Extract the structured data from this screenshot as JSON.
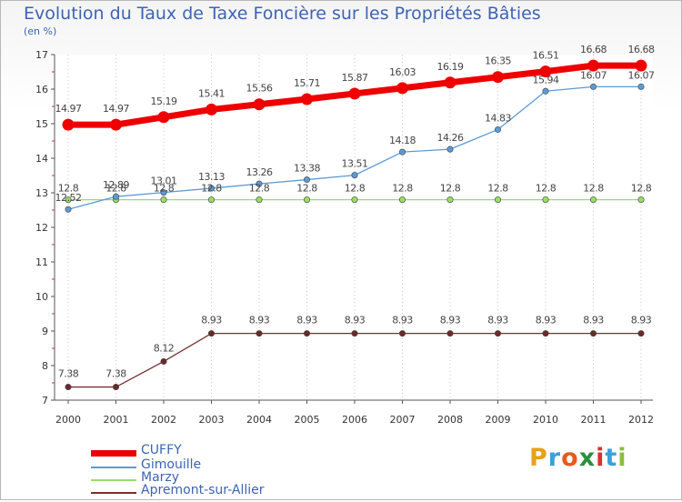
{
  "title": "Evolution du Taux de Taxe Foncière sur les Propriétés Bâties",
  "subtitle": "(en %)",
  "logo_text": "Proxiti",
  "logo_colors": [
    "#e8a11c",
    "#3aa0d8",
    "#e85a1c",
    "#2a8f3e",
    "#d4342c",
    "#3aa0d8",
    "#8bbf3a"
  ],
  "chart_data": {
    "type": "line",
    "title": "Evolution du Taux de Taxe Foncière sur les Propriétés Bâties",
    "ylabel": "(en %)",
    "xlabel": "",
    "x": [
      "2000",
      "2001",
      "2002",
      "2003",
      "2004",
      "2005",
      "2006",
      "2007",
      "2008",
      "2009",
      "2010",
      "2011",
      "2012"
    ],
    "ylim": [
      7,
      17
    ],
    "yticks": [
      "7",
      "8",
      "9",
      "10",
      "11",
      "12",
      "13",
      "14",
      "15",
      "16",
      "17"
    ],
    "grid": "vertical dotted",
    "legend_position": "bottom-left",
    "series": [
      {
        "name": "CUFFY",
        "color": "#ee0000",
        "values": [
          14.97,
          14.97,
          15.19,
          15.41,
          15.56,
          15.71,
          15.87,
          16.03,
          16.19,
          16.35,
          16.51,
          16.68,
          16.68
        ],
        "labels": [
          "14.97",
          "14.97",
          "15.19",
          "15.41",
          "15.56",
          "15.71",
          "15.87",
          "16.03",
          "16.19",
          "16.35",
          "16.51",
          "16.68",
          "16.68"
        ]
      },
      {
        "name": "Gimouille",
        "color": "#5b9bd5",
        "values": [
          12.52,
          12.89,
          13.01,
          13.13,
          13.26,
          13.38,
          13.51,
          14.18,
          14.26,
          14.83,
          15.94,
          16.07,
          16.07
        ],
        "labels": [
          "12.52",
          "12.89",
          "13.01",
          "13.13",
          "13.26",
          "13.38",
          "13.51",
          "14.18",
          "14.26",
          "14.83",
          "15.94",
          "16.07",
          "16.07"
        ]
      },
      {
        "name": "Marzy",
        "color": "#99dd66",
        "values": [
          12.8,
          12.8,
          12.8,
          12.8,
          12.8,
          12.8,
          12.8,
          12.8,
          12.8,
          12.8,
          12.8,
          12.8,
          12.8
        ],
        "labels": [
          "12.8",
          "12.8",
          "12.8",
          "12.8",
          "12.8",
          "12.8",
          "12.8",
          "12.8",
          "12.8",
          "12.8",
          "12.8",
          "12.8",
          "12.8"
        ]
      },
      {
        "name": "Apremont-sur-Allier",
        "color": "#7a2f2f",
        "values": [
          7.38,
          7.38,
          8.12,
          8.93,
          8.93,
          8.93,
          8.93,
          8.93,
          8.93,
          8.93,
          8.93,
          8.93,
          8.93
        ],
        "labels": [
          "7.38",
          "7.38",
          "8.12",
          "8.93",
          "8.93",
          "8.93",
          "8.93",
          "8.93",
          "8.93",
          "8.93",
          "8.93",
          "8.93",
          "8.93"
        ]
      }
    ]
  }
}
